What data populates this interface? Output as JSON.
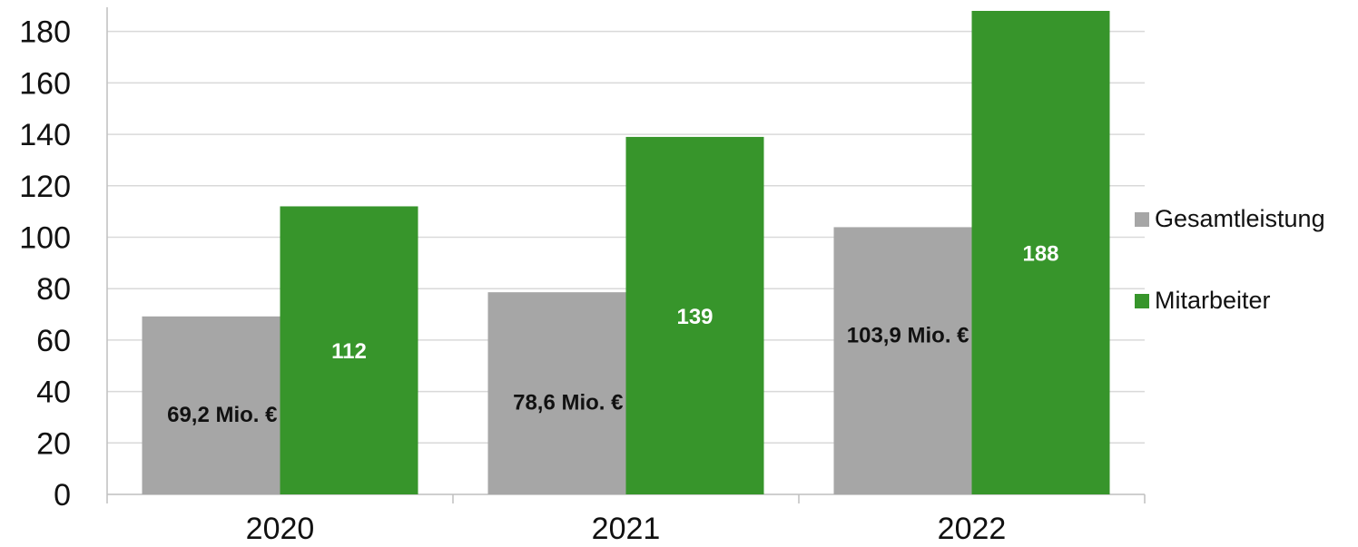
{
  "chart_data": {
    "type": "bar",
    "categories": [
      "2020",
      "2021",
      "2022"
    ],
    "series": [
      {
        "name": "Gesamtleistung",
        "values": [
          69.2,
          78.6,
          103.9
        ],
        "labels": [
          "69,2 Mio. €",
          "78,6 Mio. €",
          "103,9 Mio. €"
        ],
        "color": "#a6a6a6",
        "label_color": "#111111"
      },
      {
        "name": "Mitarbeiter",
        "values": [
          112,
          139,
          188
        ],
        "labels": [
          "112",
          "139",
          "188"
        ],
        "color": "#37952b",
        "label_color": "#ffffff"
      }
    ],
    "yticks": [
      "0",
      "20",
      "40",
      "60",
      "80",
      "100",
      "120",
      "140",
      "160",
      "180"
    ],
    "ylim": [
      0,
      188
    ],
    "grid": true,
    "legend_position": "right"
  }
}
